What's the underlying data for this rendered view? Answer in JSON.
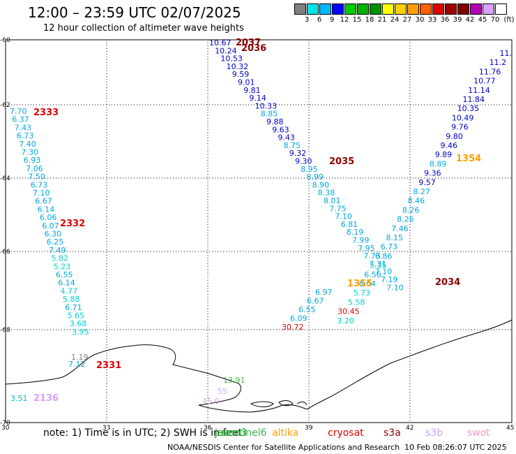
{
  "title": "12:00 – 23:59 UTC 02/07/2025",
  "subtitle": "12 hour collection of altimeter wave heights",
  "legend": {
    "unit": "(ft)",
    "bins": [
      {
        "label": "",
        "color": "#808080"
      },
      {
        "label": "3",
        "color": "#00e5e5"
      },
      {
        "label": "6",
        "color": "#00b8ff"
      },
      {
        "label": "9",
        "color": "#0000ff"
      },
      {
        "label": "12",
        "color": "#00cc00"
      },
      {
        "label": "15",
        "color": "#00b000"
      },
      {
        "label": "18",
        "color": "#009000"
      },
      {
        "label": "21",
        "color": "#ffff00"
      },
      {
        "label": "24",
        "color": "#ffd000"
      },
      {
        "label": "27",
        "color": "#ffa000"
      },
      {
        "label": "30",
        "color": "#ff6000"
      },
      {
        "label": "33",
        "color": "#e00000"
      },
      {
        "label": "36",
        "color": "#a00000"
      },
      {
        "label": "39",
        "color": "#800000"
      },
      {
        "label": "42",
        "color": "#b000b0"
      },
      {
        "label": "45",
        "color": "#d8a0ff"
      },
      {
        "label": "70",
        "color": "#ffffff"
      }
    ]
  },
  "axes": {
    "lon_labels": [
      "30",
      "33",
      "36",
      "39",
      "42",
      "45"
    ],
    "lat_labels": [
      "-60",
      "-62",
      "-64",
      "-66",
      "-68",
      "-70"
    ]
  },
  "passes": [
    {
      "label": "2037",
      "color": "#8b0000"
    },
    {
      "label": "2036",
      "color": "#8b0000"
    },
    {
      "label": "2035",
      "color": "#8b0000"
    },
    {
      "label": "2034",
      "color": "#8b0000"
    },
    {
      "label": "2333",
      "color": "#e00000"
    },
    {
      "label": "2332",
      "color": "#e00000"
    },
    {
      "label": "2331",
      "color": "#e00000"
    },
    {
      "label": "1354",
      "color": "#ffa000"
    },
    {
      "label": "1355",
      "color": "#ffa000"
    },
    {
      "label": "2136",
      "color": "#d8a0ff"
    }
  ],
  "tracks": [
    {
      "name": "track-2036",
      "values": [
        "10.67",
        "10.24",
        "10.53",
        "10.32",
        "9.59",
        "9.01",
        "9.81",
        "9.14",
        "10.33",
        "8.85",
        "9.88",
        "9.63",
        "9.43",
        "8.75",
        "9.32",
        "9.30",
        "8.95",
        "8.99",
        "8.90",
        "8.38",
        "8.01",
        "7.75",
        "7.10",
        "6.81",
        "8.19",
        "7.99",
        "7.95",
        "7.73",
        "7.31",
        "7.10",
        "7.19",
        "7.10"
      ]
    },
    {
      "name": "track-2333",
      "values": [
        "7.70",
        "6.37",
        "7.43",
        "6.73",
        "7.40",
        "7.30",
        "6.93",
        "7.06",
        "7.50",
        "6.73",
        "7.10",
        "6.67",
        "6.14",
        "6.06",
        "6.07",
        "6.30",
        "6.25",
        "7.49",
        "5.82",
        "5.23",
        "6.55",
        "6.14",
        "4.77",
        "5.88",
        "6.71",
        "5.65",
        "3.68",
        "3.95",
        "1.19",
        "7.12"
      ]
    },
    {
      "name": "track-1354",
      "values": [
        "11.",
        "11.2",
        "11.76",
        "10.77",
        "11.14",
        "11.84",
        "10.35",
        "10.49",
        "9.76",
        "9.80",
        "9.46",
        "9.89",
        "8.89",
        "9.36",
        "9.57",
        "8.27",
        "8.46",
        "8.26",
        "8.26",
        "7.46",
        "8.15",
        "6.73",
        "6.86",
        "5.35",
        "6.56",
        "6.04",
        "5.73",
        "5.58",
        "30.45",
        "3.20"
      ]
    },
    {
      "name": "track-1355",
      "values": [
        "6.97",
        "6.67",
        "6.55",
        "6.09",
        "30.72"
      ]
    },
    {
      "name": "coastal",
      "values": [
        "13.91",
        "55",
        "45.0",
        "3.51"
      ]
    }
  ],
  "satellites": [
    {
      "label": "jason3",
      "color": "#00a000"
    },
    {
      "label": "sentinel6",
      "color": "#3cb44b"
    },
    {
      "label": "altika",
      "color": "#ffa000"
    },
    {
      "label": "cryosat",
      "color": "#e00000"
    },
    {
      "label": "s3a",
      "color": "#8b0000"
    },
    {
      "label": "s3b",
      "color": "#c8a0ff"
    },
    {
      "label": "swot",
      "color": "#ff90d0"
    }
  ],
  "note": "note:  1) Time is in UTC; 2) SWH is in feet",
  "credit": "NOAA/NESDIS Center for Satellite Applications and Research",
  "timestamp": "10 Feb 08:26:07 UTC 2025"
}
